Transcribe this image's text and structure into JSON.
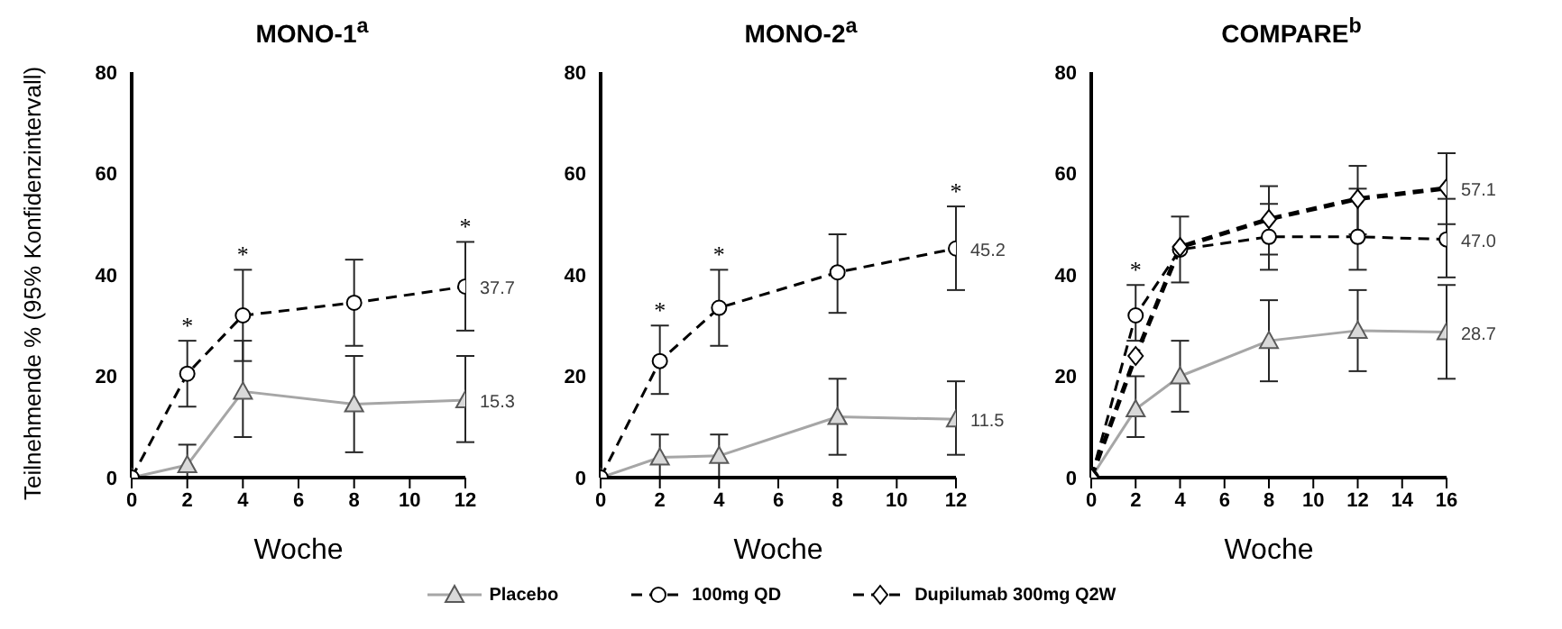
{
  "chart_data": [
    {
      "type": "line",
      "title": "MONO-1$^{a}$",
      "xlabel": "Woche",
      "ylabel": "Teilnehmende % (95% Konfidenzintervall)",
      "xlim": [
        0,
        12
      ],
      "xticks": [
        0,
        2,
        4,
        6,
        8,
        10,
        12
      ],
      "ylim": [
        0,
        80
      ],
      "yticks": [
        0,
        20,
        40,
        60,
        80
      ],
      "x": [
        0,
        2,
        4,
        8,
        12
      ],
      "series": [
        {
          "color": "#a6a6a6",
          "marker": "triangle",
          "line_style": "solid",
          "values": [
            0,
            2.5,
            17,
            14.5,
            15.3
          ],
          "errors": [
            null,
            [
              0,
              6.5
            ],
            [
              8,
              27
            ],
            [
              5,
              24
            ],
            [
              7,
              24
            ]
          ],
          "value_labels": [
            null,
            null,
            null,
            null,
            "15.3"
          ]
        },
        {
          "color": "#000000",
          "marker": "circle",
          "line_style": "dashed",
          "values": [
            0,
            20.5,
            32,
            34.5,
            37.7
          ],
          "errors": [
            null,
            [
              14,
              27
            ],
            [
              23,
              41
            ],
            [
              26,
              43
            ],
            [
              29,
              46.5
            ]
          ],
          "value_labels": [
            null,
            null,
            null,
            null,
            "37.7"
          ]
        }
      ],
      "annotations": [
        {
          "text": "*",
          "x": 2,
          "y": 20.5
        },
        {
          "text": "*",
          "x": 4,
          "y": 32
        },
        {
          "text": "*",
          "x": 12,
          "y": 37.7
        }
      ]
    },
    {
      "type": "line",
      "title": "MONO-2$^{a}$",
      "xlabel": "Woche",
      "xlim": [
        0,
        12
      ],
      "xticks": [
        0,
        2,
        4,
        6,
        8,
        10,
        12
      ],
      "ylim": [
        0,
        80
      ],
      "yticks": [
        0,
        20,
        40,
        60,
        80
      ],
      "x": [
        0,
        2,
        4,
        8,
        12
      ],
      "series": [
        {
          "color": "#a6a6a6",
          "marker": "triangle",
          "line_style": "solid",
          "values": [
            0,
            4,
            4.3,
            12,
            11.5
          ],
          "errors": [
            null,
            [
              0,
              8.5
            ],
            [
              0,
              8.5
            ],
            [
              4.5,
              19.5
            ],
            [
              4.5,
              19
            ]
          ],
          "value_labels": [
            null,
            null,
            null,
            null,
            "11.5"
          ]
        },
        {
          "color": "#000000",
          "marker": "circle",
          "line_style": "dashed",
          "values": [
            0,
            23,
            33.5,
            40.5,
            45.2
          ],
          "errors": [
            null,
            [
              16.5,
              30
            ],
            [
              26,
              41
            ],
            [
              32.5,
              48
            ],
            [
              37,
              53.5
            ]
          ],
          "value_labels": [
            null,
            null,
            null,
            null,
            "45.2"
          ]
        }
      ],
      "annotations": [
        {
          "text": "*",
          "x": 2,
          "y": 23
        },
        {
          "text": "*",
          "x": 4,
          "y": 33.5
        },
        {
          "text": "*",
          "x": 12,
          "y": 45.2
        }
      ]
    },
    {
      "type": "line",
      "title": "COMPARE$^{b}$",
      "xlabel": "Woche",
      "xlim": [
        0,
        16
      ],
      "xticks": [
        0,
        2,
        4,
        6,
        8,
        10,
        12,
        14,
        16
      ],
      "ylim": [
        0,
        80
      ],
      "yticks": [
        0,
        20,
        40,
        60,
        80
      ],
      "x": [
        0,
        2,
        4,
        8,
        12,
        16
      ],
      "legend": "bottom",
      "series": [
        {
          "name": "Placebo",
          "color": "#a6a6a6",
          "marker": "triangle",
          "line_style": "solid",
          "values": [
            0,
            13.5,
            20,
            27,
            29,
            28.7
          ],
          "errors": [
            null,
            [
              8,
              20
            ],
            [
              13,
              27
            ],
            [
              19,
              35
            ],
            [
              21,
              37
            ],
            [
              19.5,
              38
            ]
          ],
          "value_labels": [
            null,
            null,
            null,
            null,
            null,
            "28.7"
          ]
        },
        {
          "name": "100mg QD",
          "color": "#000000",
          "marker": "circle",
          "line_style": "dashed",
          "values": [
            0,
            32,
            45,
            47.5,
            47.5,
            47.0
          ],
          "errors": [
            null,
            [
              27,
              38
            ],
            [
              38.5,
              51.5
            ],
            [
              41,
              54
            ],
            [
              41,
              57
            ],
            [
              39.5,
              55
            ]
          ],
          "value_labels": [
            null,
            null,
            null,
            null,
            null,
            "47.0"
          ]
        },
        {
          "name": "Dupilumab 300mg Q2W",
          "color": "#000000",
          "marker": "diamond",
          "line_style": "dashed",
          "values": [
            0,
            24,
            45.5,
            51,
            55,
            57.1
          ],
          "errors": [
            null,
            null,
            null,
            [
              44,
              57.5
            ],
            [
              48,
              61.5
            ],
            [
              50,
              64
            ]
          ],
          "value_labels": [
            null,
            null,
            null,
            null,
            null,
            "57.1"
          ]
        }
      ],
      "annotations": [
        {
          "text": "*",
          "x": 2,
          "y": 32
        }
      ]
    }
  ]
}
